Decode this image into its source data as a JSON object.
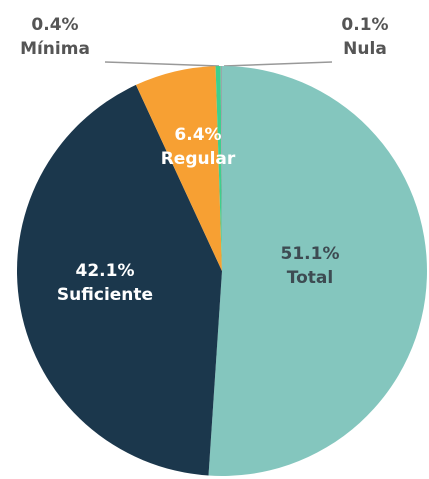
{
  "chart_data": {
    "type": "pie",
    "categories": [
      "Total",
      "Suficiente",
      "Regular",
      "Mínima",
      "Nula"
    ],
    "values": [
      51.1,
      42.1,
      6.4,
      0.4,
      0.1
    ],
    "value_labels": [
      "51.1%",
      "42.1%",
      "6.4%",
      "0.4%",
      "0.1%"
    ],
    "colors": [
      "#84c6be",
      "#1b374c",
      "#f7a033",
      "#3ecf8e",
      "#9aa7aa"
    ]
  }
}
